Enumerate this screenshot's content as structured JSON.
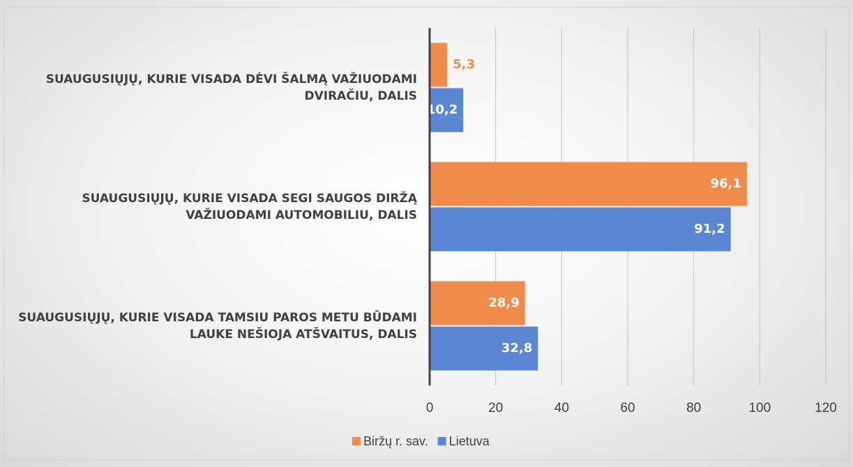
{
  "chart_data": {
    "type": "hbar",
    "categories": [
      "SUAUGUSIŲJŲ, KURIE VISADA DĖVI ŠALMĄ VAŽIUODAMI DVIRAČIU, DALIS",
      "SUAUGUSIŲJŲ, KURIE VISADA SEGI SAUGOS DIRŽĄ VAŽIUODAMI AUTOMOBILIU, DALIS",
      "SUAUGUSIŲJŲ, KURIE VISADA TAMSIU PAROS METU BŪDAMI LAUKE NEŠIOJA ATŠVAITUS, DALIS"
    ],
    "series": [
      {
        "name": "Biržų r. sav.",
        "color": "#ef8c4c",
        "values": [
          5.3,
          96.1,
          28.9
        ],
        "value_labels": [
          "5,3",
          "96,1",
          "28,9"
        ]
      },
      {
        "name": "Lietuva",
        "color": "#5b86d2",
        "values": [
          10.2,
          91.2,
          32.8
        ],
        "value_labels": [
          "10,2",
          "91,2",
          "32,8"
        ]
      }
    ],
    "xlim": [
      0,
      120
    ],
    "xticks": [
      0,
      20,
      40,
      60,
      80,
      100,
      120
    ],
    "grid": true,
    "legend": "bottom"
  }
}
